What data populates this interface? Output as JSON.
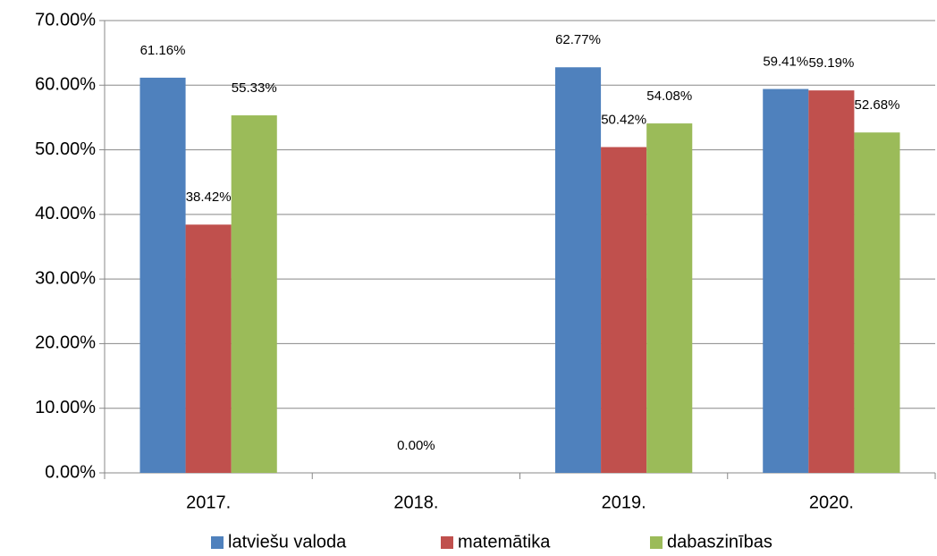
{
  "chart_data": {
    "type": "bar",
    "categories": [
      "2017.",
      "2018.",
      "2019.",
      "2020."
    ],
    "series": [
      {
        "name": "latviešu valoda",
        "color": "#4f81bd",
        "values": [
          61.16,
          null,
          62.77,
          59.41
        ],
        "value_labels": [
          "61.16%",
          null,
          "62.77%",
          "59.41%"
        ]
      },
      {
        "name": "matemātika",
        "color": "#c0504d",
        "values": [
          38.42,
          0,
          50.42,
          59.19
        ],
        "value_labels": [
          "38.42%",
          "0.00%",
          "50.42%",
          "59.19%"
        ]
      },
      {
        "name": "dabaszinības",
        "color": "#9bbb59",
        "values": [
          55.33,
          null,
          54.08,
          52.68
        ],
        "value_labels": [
          "55.33%",
          null,
          "54.08%",
          "52.68%"
        ]
      }
    ],
    "ylim": [
      0,
      70
    ],
    "yticks": [
      {
        "value": 0,
        "label": "0.00%"
      },
      {
        "value": 10,
        "label": "10.00%"
      },
      {
        "value": 20,
        "label": "20.00%"
      },
      {
        "value": 30,
        "label": "30.00%"
      },
      {
        "value": 40,
        "label": "40.00%"
      },
      {
        "value": 50,
        "label": "50.00%"
      },
      {
        "value": 60,
        "label": "60.00%"
      },
      {
        "value": 70,
        "label": "70.00%"
      }
    ],
    "grid": true,
    "legend": "bottom"
  }
}
